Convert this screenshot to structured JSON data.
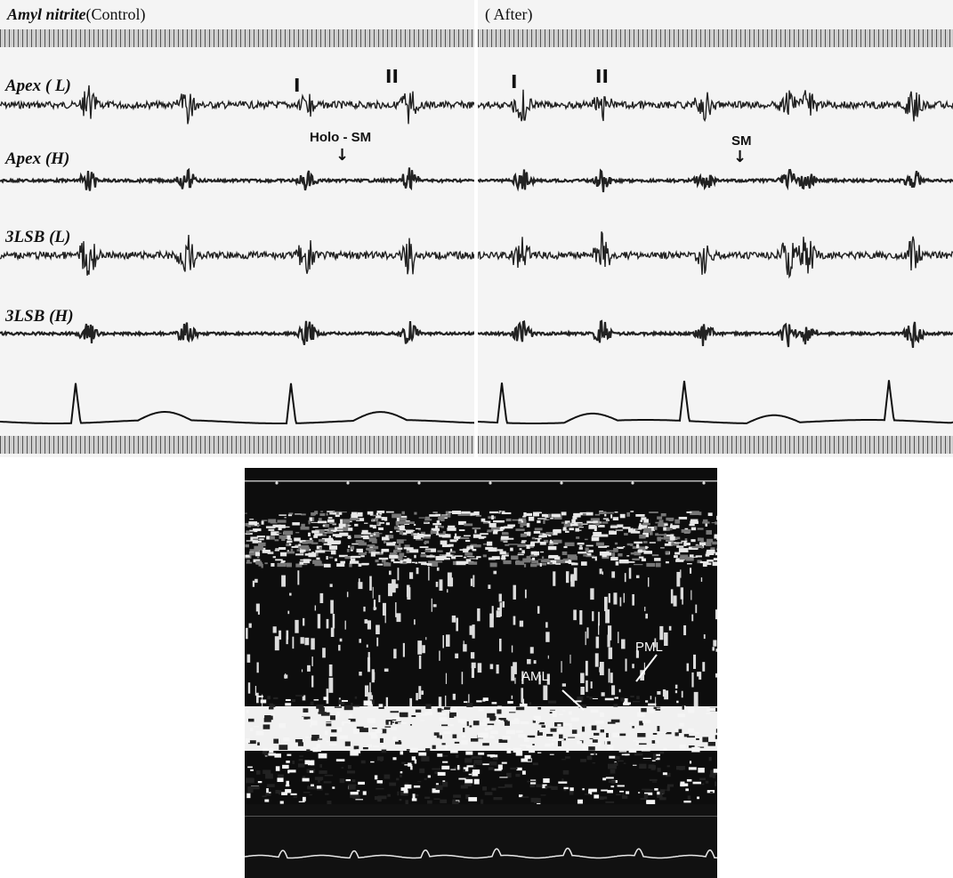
{
  "control_panel": {
    "drug": "Amyl nitrite",
    "phase": "(Control)",
    "markers": {
      "s1": "I",
      "s2": "II"
    },
    "annotation": "Holo - SM"
  },
  "after_panel": {
    "phase": "( After)",
    "markers": {
      "s1": "I",
      "s2": "II"
    },
    "annotation": "SM"
  },
  "trace_labels": {
    "apex_low": "Apex ( L)",
    "apex_high": "Apex (H)",
    "lsb3_low": "3LSB (L)",
    "lsb3_high": "3LSB (H)"
  },
  "echo": {
    "aml_label": "AML",
    "pml_label": "PML"
  }
}
